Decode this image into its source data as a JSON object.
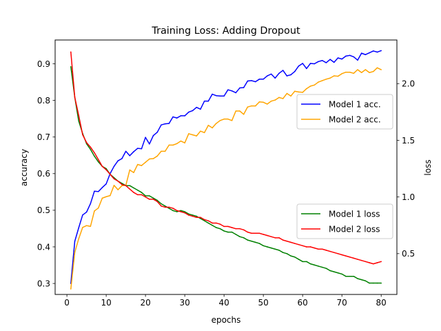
{
  "chart_data": {
    "type": "line",
    "title": "Training Loss: Adding Dropout",
    "xlabel": "epochs",
    "ylabel_left": "accuracy",
    "ylabel_right": "loss",
    "xlim": [
      -3,
      84
    ],
    "ylim_left": [
      0.27,
      0.965
    ],
    "ylim_right": [
      0.14,
      2.385
    ],
    "x_ticks": [
      0,
      10,
      20,
      30,
      40,
      50,
      60,
      70,
      80
    ],
    "y_ticks_left": [
      0.3,
      0.4,
      0.5,
      0.6,
      0.7,
      0.8,
      0.9
    ],
    "y_ticks_right": [
      0.5,
      1.0,
      1.5,
      2.0
    ],
    "legends": [
      {
        "position": "center-right-upper",
        "entries": [
          "Model 1 acc.",
          "Model 2 acc."
        ]
      },
      {
        "position": "center-right-lower",
        "entries": [
          "Model 1 loss",
          "Model 2 loss"
        ]
      }
    ],
    "x": [
      1,
      2,
      3,
      4,
      5,
      6,
      7,
      8,
      9,
      10,
      11,
      12,
      13,
      14,
      15,
      16,
      17,
      18,
      19,
      20,
      21,
      22,
      23,
      24,
      25,
      26,
      27,
      28,
      29,
      30,
      31,
      32,
      33,
      34,
      35,
      36,
      37,
      38,
      39,
      40,
      41,
      42,
      43,
      44,
      45,
      46,
      47,
      48,
      49,
      50,
      51,
      52,
      53,
      54,
      55,
      56,
      57,
      58,
      59,
      60,
      61,
      62,
      63,
      64,
      65,
      66,
      67,
      68,
      69,
      70,
      71,
      72,
      73,
      74,
      75,
      76,
      77,
      78,
      79,
      80
    ],
    "series": [
      {
        "name": "Model 1 acc.",
        "axis": "left",
        "color": "#0000ff",
        "values": [
          0.3,
          0.415,
          0.452,
          0.487,
          0.495,
          0.518,
          0.552,
          0.551,
          0.562,
          0.572,
          0.6,
          0.62,
          0.635,
          0.641,
          0.661,
          0.649,
          0.66,
          0.669,
          0.668,
          0.699,
          0.681,
          0.704,
          0.713,
          0.733,
          0.736,
          0.737,
          0.755,
          0.752,
          0.758,
          0.758,
          0.768,
          0.772,
          0.781,
          0.776,
          0.798,
          0.798,
          0.817,
          0.813,
          0.812,
          0.812,
          0.829,
          0.826,
          0.821,
          0.834,
          0.835,
          0.853,
          0.854,
          0.851,
          0.858,
          0.858,
          0.867,
          0.872,
          0.861,
          0.874,
          0.882,
          0.867,
          0.87,
          0.879,
          0.894,
          0.901,
          0.887,
          0.901,
          0.9,
          0.906,
          0.909,
          0.903,
          0.912,
          0.904,
          0.916,
          0.913,
          0.921,
          0.923,
          0.919,
          0.91,
          0.929,
          0.925,
          0.93,
          0.935,
          0.932,
          0.936
        ]
      },
      {
        "name": "Model 2 acc.",
        "axis": "left",
        "color": "#ffa500",
        "values": [
          0.285,
          0.385,
          0.422,
          0.453,
          0.458,
          0.456,
          0.498,
          0.506,
          0.533,
          0.537,
          0.54,
          0.568,
          0.556,
          0.567,
          0.568,
          0.61,
          0.603,
          0.625,
          0.622,
          0.631,
          0.64,
          0.641,
          0.648,
          0.661,
          0.661,
          0.678,
          0.678,
          0.682,
          0.689,
          0.684,
          0.709,
          0.706,
          0.703,
          0.716,
          0.712,
          0.732,
          0.725,
          0.737,
          0.745,
          0.749,
          0.749,
          0.745,
          0.771,
          0.771,
          0.762,
          0.782,
          0.785,
          0.785,
          0.796,
          0.795,
          0.79,
          0.798,
          0.801,
          0.808,
          0.805,
          0.819,
          0.812,
          0.825,
          0.823,
          0.822,
          0.832,
          0.839,
          0.842,
          0.85,
          0.854,
          0.858,
          0.861,
          0.867,
          0.866,
          0.873,
          0.877,
          0.877,
          0.874,
          0.884,
          0.876,
          0.884,
          0.876,
          0.879,
          0.889,
          0.884
        ]
      },
      {
        "name": "Model 1 loss",
        "axis": "right",
        "color": "#008000",
        "values": [
          2.15,
          1.88,
          1.67,
          1.56,
          1.47,
          1.42,
          1.36,
          1.31,
          1.27,
          1.25,
          1.2,
          1.17,
          1.14,
          1.12,
          1.1,
          1.1,
          1.08,
          1.06,
          1.04,
          1.01,
          1.01,
          0.99,
          0.97,
          0.94,
          0.92,
          0.9,
          0.88,
          0.87,
          0.88,
          0.87,
          0.85,
          0.84,
          0.83,
          0.81,
          0.79,
          0.77,
          0.75,
          0.73,
          0.72,
          0.7,
          0.69,
          0.69,
          0.67,
          0.65,
          0.64,
          0.62,
          0.61,
          0.6,
          0.59,
          0.57,
          0.56,
          0.55,
          0.54,
          0.53,
          0.51,
          0.5,
          0.48,
          0.47,
          0.45,
          0.43,
          0.43,
          0.41,
          0.4,
          0.39,
          0.38,
          0.37,
          0.35,
          0.34,
          0.33,
          0.32,
          0.3,
          0.3,
          0.3,
          0.28,
          0.27,
          0.26,
          0.24,
          0.24,
          0.24,
          0.24
        ]
      },
      {
        "name": "Model 2 loss",
        "axis": "right",
        "color": "#ff0000",
        "values": [
          2.28,
          1.88,
          1.72,
          1.55,
          1.48,
          1.44,
          1.39,
          1.33,
          1.27,
          1.24,
          1.2,
          1.16,
          1.14,
          1.11,
          1.1,
          1.07,
          1.04,
          1.02,
          1.02,
          1.0,
          0.98,
          0.98,
          0.96,
          0.92,
          0.91,
          0.91,
          0.9,
          0.88,
          0.87,
          0.86,
          0.84,
          0.83,
          0.82,
          0.82,
          0.8,
          0.79,
          0.77,
          0.77,
          0.76,
          0.74,
          0.74,
          0.73,
          0.72,
          0.72,
          0.71,
          0.69,
          0.68,
          0.68,
          0.68,
          0.67,
          0.66,
          0.65,
          0.64,
          0.64,
          0.62,
          0.61,
          0.6,
          0.59,
          0.58,
          0.57,
          0.56,
          0.56,
          0.55,
          0.54,
          0.54,
          0.53,
          0.52,
          0.51,
          0.5,
          0.49,
          0.48,
          0.47,
          0.46,
          0.45,
          0.44,
          0.43,
          0.42,
          0.41,
          0.42,
          0.43
        ]
      }
    ]
  }
}
